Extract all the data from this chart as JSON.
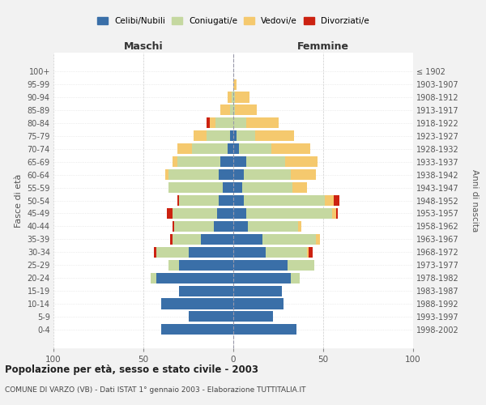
{
  "age_groups": [
    "0-4",
    "5-9",
    "10-14",
    "15-19",
    "20-24",
    "25-29",
    "30-34",
    "35-39",
    "40-44",
    "45-49",
    "50-54",
    "55-59",
    "60-64",
    "65-69",
    "70-74",
    "75-79",
    "80-84",
    "85-89",
    "90-94",
    "95-99",
    "100+"
  ],
  "birth_years": [
    "1998-2002",
    "1993-1997",
    "1988-1992",
    "1983-1987",
    "1978-1982",
    "1973-1977",
    "1968-1972",
    "1963-1967",
    "1958-1962",
    "1953-1957",
    "1948-1952",
    "1943-1947",
    "1938-1942",
    "1933-1937",
    "1928-1932",
    "1923-1927",
    "1918-1922",
    "1913-1917",
    "1908-1912",
    "1903-1907",
    "≤ 1902"
  ],
  "maschi": {
    "celibi": [
      40,
      25,
      40,
      30,
      43,
      30,
      25,
      18,
      11,
      9,
      8,
      6,
      8,
      7,
      3,
      2,
      0,
      0,
      0,
      0,
      0
    ],
    "coniugati": [
      0,
      0,
      0,
      0,
      3,
      6,
      18,
      16,
      22,
      25,
      22,
      30,
      28,
      24,
      20,
      13,
      10,
      2,
      1,
      0,
      0
    ],
    "vedovi": [
      0,
      0,
      0,
      0,
      0,
      0,
      0,
      0,
      0,
      0,
      0,
      0,
      2,
      3,
      8,
      7,
      3,
      5,
      2,
      0,
      0
    ],
    "divorziati": [
      0,
      0,
      0,
      0,
      0,
      0,
      1,
      1,
      1,
      3,
      1,
      0,
      0,
      0,
      0,
      0,
      2,
      0,
      0,
      0,
      0
    ]
  },
  "femmine": {
    "nubili": [
      35,
      22,
      28,
      27,
      32,
      30,
      18,
      16,
      8,
      7,
      6,
      5,
      6,
      7,
      3,
      2,
      0,
      0,
      0,
      0,
      0
    ],
    "coniugate": [
      0,
      0,
      0,
      0,
      5,
      15,
      23,
      30,
      28,
      48,
      45,
      28,
      26,
      22,
      18,
      10,
      7,
      1,
      1,
      0,
      0
    ],
    "vedove": [
      0,
      0,
      0,
      0,
      0,
      0,
      1,
      2,
      2,
      2,
      5,
      8,
      14,
      18,
      22,
      22,
      18,
      12,
      8,
      2,
      0
    ],
    "divorziate": [
      0,
      0,
      0,
      0,
      0,
      0,
      2,
      0,
      0,
      1,
      3,
      0,
      0,
      0,
      0,
      0,
      0,
      0,
      0,
      0,
      0
    ]
  },
  "colors": {
    "celibi": "#3a6fa8",
    "coniugati": "#c5d8a0",
    "vedovi": "#f5c96e",
    "divorziati": "#cc2211"
  },
  "title": "Popolazione per età, sesso e stato civile - 2003",
  "subtitle": "COMUNE DI VARZO (VB) - Dati ISTAT 1° gennaio 2003 - Elaborazione TUTTITALIA.IT",
  "xlabel_left": "Maschi",
  "xlabel_right": "Femmine",
  "ylabel_left": "Fasce di età",
  "ylabel_right": "Anni di nascita",
  "xlim": 100,
  "background_color": "#f2f2f2",
  "plot_bg": "#ffffff"
}
